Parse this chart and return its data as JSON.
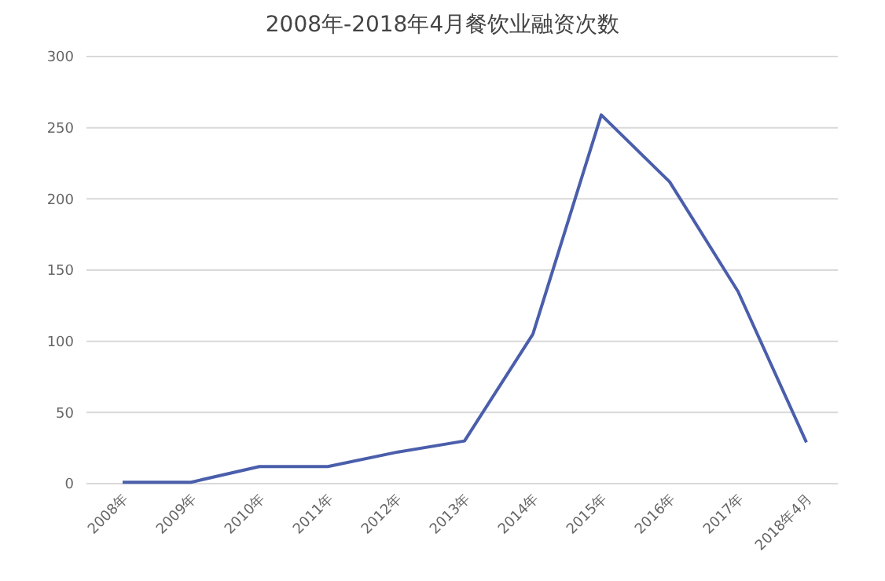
{
  "chart_data": {
    "type": "line",
    "title": "2008年-2018年4月餐饮业融资次数",
    "categories": [
      "2008年",
      "2009年",
      "2010年",
      "2011年",
      "2012年",
      "2013年",
      "2014年",
      "2015年",
      "2016年",
      "2017年",
      "2018年4月"
    ],
    "series": [
      {
        "color": "#4a5eab",
        "values": [
          1,
          1,
          12,
          12,
          22,
          30,
          105,
          259,
          212,
          135,
          29
        ]
      }
    ],
    "ylim": [
      0,
      300
    ],
    "yticks": [
      0,
      50,
      100,
      150,
      200,
      250,
      300
    ],
    "grid": "y",
    "marker": "none",
    "line_style": "solid"
  }
}
